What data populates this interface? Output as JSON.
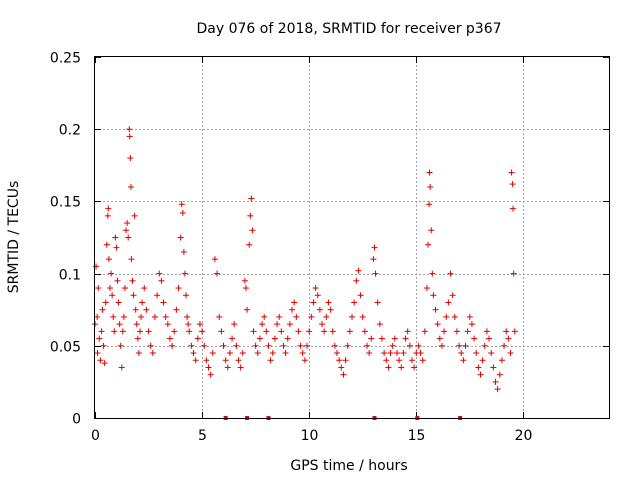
{
  "chart_data": {
    "type": "scatter",
    "title": "Day 076 of 2018, SRMTID for receiver p367",
    "xlabel": "GPS time / hours",
    "ylabel": "SRMTID / TECUs",
    "xlim": [
      0,
      24
    ],
    "ylim": [
      0,
      0.25
    ],
    "xticks": [
      0,
      5,
      10,
      15,
      20
    ],
    "xtick_labels": [
      "0",
      "5",
      "10",
      "15",
      "20"
    ],
    "yticks": [
      0,
      0.05,
      0.1,
      0.15,
      0.2,
      0.25
    ],
    "ytick_labels": [
      "0",
      "0.05",
      "0.1",
      "0.15",
      "0.2",
      "0.25"
    ],
    "grid": true,
    "marker": "+",
    "color": "#e00000",
    "series": [
      {
        "name": "SRMTID",
        "points": [
          [
            0.0,
            0.065
          ],
          [
            0.05,
            0.105
          ],
          [
            0.1,
            0.07
          ],
          [
            0.12,
            0.045
          ],
          [
            0.15,
            0.09
          ],
          [
            0.2,
            0.055
          ],
          [
            0.25,
            0.04
          ],
          [
            0.3,
            0.06
          ],
          [
            0.35,
            0.075
          ],
          [
            0.4,
            0.05
          ],
          [
            0.45,
            0.038
          ],
          [
            0.5,
            0.08
          ],
          [
            0.55,
            0.12
          ],
          [
            0.6,
            0.14
          ],
          [
            0.62,
            0.145
          ],
          [
            0.65,
            0.11
          ],
          [
            0.7,
            0.09
          ],
          [
            0.75,
            0.1
          ],
          [
            0.8,
            0.085
          ],
          [
            0.85,
            0.07
          ],
          [
            0.9,
            0.06
          ],
          [
            0.95,
            0.125
          ],
          [
            1.0,
            0.118
          ],
          [
            1.05,
            0.095
          ],
          [
            1.1,
            0.08
          ],
          [
            1.15,
            0.065
          ],
          [
            1.2,
            0.05
          ],
          [
            1.25,
            0.035
          ],
          [
            1.3,
            0.06
          ],
          [
            1.35,
            0.07
          ],
          [
            1.4,
            0.09
          ],
          [
            1.45,
            0.13
          ],
          [
            1.5,
            0.135
          ],
          [
            1.55,
            0.125
          ],
          [
            1.6,
            0.2
          ],
          [
            1.62,
            0.195
          ],
          [
            1.65,
            0.18
          ],
          [
            1.68,
            0.16
          ],
          [
            1.7,
            0.11
          ],
          [
            1.75,
            0.095
          ],
          [
            1.8,
            0.085
          ],
          [
            1.85,
            0.14
          ],
          [
            1.9,
            0.075
          ],
          [
            1.95,
            0.065
          ],
          [
            2.0,
            0.055
          ],
          [
            2.05,
            0.045
          ],
          [
            2.1,
            0.06
          ],
          [
            2.15,
            0.07
          ],
          [
            2.2,
            0.08
          ],
          [
            2.3,
            0.09
          ],
          [
            2.4,
            0.075
          ],
          [
            2.5,
            0.06
          ],
          [
            2.6,
            0.05
          ],
          [
            2.7,
            0.045
          ],
          [
            2.8,
            0.07
          ],
          [
            2.9,
            0.085
          ],
          [
            3.0,
            0.1
          ],
          [
            3.1,
            0.095
          ],
          [
            3.2,
            0.08
          ],
          [
            3.3,
            0.07
          ],
          [
            3.4,
            0.065
          ],
          [
            3.5,
            0.055
          ],
          [
            3.6,
            0.05
          ],
          [
            3.7,
            0.06
          ],
          [
            3.8,
            0.075
          ],
          [
            3.9,
            0.09
          ],
          [
            4.0,
            0.125
          ],
          [
            4.05,
            0.148
          ],
          [
            4.1,
            0.142
          ],
          [
            4.15,
            0.115
          ],
          [
            4.2,
            0.1
          ],
          [
            4.25,
            0.085
          ],
          [
            4.3,
            0.07
          ],
          [
            4.35,
            0.065
          ],
          [
            4.4,
            0.06
          ],
          [
            4.5,
            0.05
          ],
          [
            4.6,
            0.045
          ],
          [
            4.7,
            0.04
          ],
          [
            4.8,
            0.055
          ],
          [
            4.9,
            0.065
          ],
          [
            5.0,
            0.06
          ],
          [
            5.1,
            0.05
          ],
          [
            5.2,
            0.04
          ],
          [
            5.3,
            0.035
          ],
          [
            5.4,
            0.03
          ],
          [
            5.5,
            0.045
          ],
          [
            5.6,
            0.11
          ],
          [
            5.7,
            0.1
          ],
          [
            5.8,
            0.07
          ],
          [
            5.9,
            0.06
          ],
          [
            6.0,
            0.05
          ],
          [
            6.1,
            0.04
          ],
          [
            6.2,
            0.035
          ],
          [
            6.3,
            0.045
          ],
          [
            6.4,
            0.055
          ],
          [
            6.5,
            0.065
          ],
          [
            6.6,
            0.05
          ],
          [
            6.7,
            0.04
          ],
          [
            6.8,
            0.035
          ],
          [
            6.9,
            0.045
          ],
          [
            7.0,
            0.095
          ],
          [
            7.05,
            0.09
          ],
          [
            7.1,
            0.075
          ],
          [
            7.2,
            0.12
          ],
          [
            7.25,
            0.14
          ],
          [
            7.3,
            0.152
          ],
          [
            7.35,
            0.13
          ],
          [
            7.4,
            0.06
          ],
          [
            7.5,
            0.05
          ],
          [
            7.6,
            0.045
          ],
          [
            7.7,
            0.055
          ],
          [
            7.8,
            0.065
          ],
          [
            7.9,
            0.07
          ],
          [
            8.0,
            0.06
          ],
          [
            8.1,
            0.05
          ],
          [
            8.2,
            0.04
          ],
          [
            8.3,
            0.045
          ],
          [
            8.4,
            0.055
          ],
          [
            8.5,
            0.065
          ],
          [
            8.6,
            0.07
          ],
          [
            8.7,
            0.06
          ],
          [
            8.8,
            0.05
          ],
          [
            8.9,
            0.045
          ],
          [
            9.0,
            0.055
          ],
          [
            9.1,
            0.065
          ],
          [
            9.2,
            0.075
          ],
          [
            9.3,
            0.08
          ],
          [
            9.4,
            0.07
          ],
          [
            9.5,
            0.06
          ],
          [
            9.6,
            0.05
          ],
          [
            9.7,
            0.045
          ],
          [
            9.8,
            0.04
          ],
          [
            9.9,
            0.05
          ],
          [
            10.0,
            0.06
          ],
          [
            10.1,
            0.07
          ],
          [
            10.2,
            0.08
          ],
          [
            10.3,
            0.09
          ],
          [
            10.4,
            0.085
          ],
          [
            10.5,
            0.075
          ],
          [
            10.6,
            0.065
          ],
          [
            10.7,
            0.06
          ],
          [
            10.8,
            0.07
          ],
          [
            10.9,
            0.08
          ],
          [
            11.0,
            0.075
          ],
          [
            11.1,
            0.06
          ],
          [
            11.2,
            0.05
          ],
          [
            11.3,
            0.045
          ],
          [
            11.4,
            0.04
          ],
          [
            11.5,
            0.035
          ],
          [
            11.6,
            0.03
          ],
          [
            11.7,
            0.04
          ],
          [
            11.8,
            0.05
          ],
          [
            11.9,
            0.06
          ],
          [
            12.0,
            0.07
          ],
          [
            12.1,
            0.08
          ],
          [
            12.2,
            0.095
          ],
          [
            12.3,
            0.102
          ],
          [
            12.4,
            0.085
          ],
          [
            12.5,
            0.07
          ],
          [
            12.6,
            0.06
          ],
          [
            12.7,
            0.05
          ],
          [
            12.8,
            0.045
          ],
          [
            12.9,
            0.055
          ],
          [
            13.0,
            0.11
          ],
          [
            13.05,
            0.118
          ],
          [
            13.1,
            0.1
          ],
          [
            13.2,
            0.08
          ],
          [
            13.3,
            0.065
          ],
          [
            13.4,
            0.055
          ],
          [
            13.5,
            0.045
          ],
          [
            13.6,
            0.04
          ],
          [
            13.7,
            0.035
          ],
          [
            13.8,
            0.045
          ],
          [
            13.9,
            0.05
          ],
          [
            14.0,
            0.055
          ],
          [
            14.1,
            0.045
          ],
          [
            14.2,
            0.04
          ],
          [
            14.3,
            0.035
          ],
          [
            14.4,
            0.045
          ],
          [
            14.5,
            0.055
          ],
          [
            14.6,
            0.06
          ],
          [
            14.7,
            0.05
          ],
          [
            14.8,
            0.04
          ],
          [
            14.9,
            0.035
          ],
          [
            15.0,
            0.045
          ],
          [
            15.1,
            0.05
          ],
          [
            15.2,
            0.045
          ],
          [
            15.3,
            0.04
          ],
          [
            15.4,
            0.06
          ],
          [
            15.5,
            0.09
          ],
          [
            15.55,
            0.12
          ],
          [
            15.6,
            0.148
          ],
          [
            15.62,
            0.17
          ],
          [
            15.65,
            0.16
          ],
          [
            15.7,
            0.13
          ],
          [
            15.75,
            0.1
          ],
          [
            15.8,
            0.085
          ],
          [
            15.9,
            0.075
          ],
          [
            16.0,
            0.065
          ],
          [
            16.1,
            0.055
          ],
          [
            16.2,
            0.05
          ],
          [
            16.3,
            0.06
          ],
          [
            16.4,
            0.07
          ],
          [
            16.5,
            0.08
          ],
          [
            16.6,
            0.1
          ],
          [
            16.7,
            0.085
          ],
          [
            16.8,
            0.07
          ],
          [
            16.9,
            0.06
          ],
          [
            17.0,
            0.05
          ],
          [
            17.1,
            0.045
          ],
          [
            17.2,
            0.04
          ],
          [
            17.3,
            0.05
          ],
          [
            17.4,
            0.06
          ],
          [
            17.5,
            0.07
          ],
          [
            17.6,
            0.065
          ],
          [
            17.7,
            0.055
          ],
          [
            17.8,
            0.045
          ],
          [
            17.9,
            0.035
          ],
          [
            18.0,
            0.03
          ],
          [
            18.1,
            0.04
          ],
          [
            18.2,
            0.05
          ],
          [
            18.3,
            0.06
          ],
          [
            18.4,
            0.055
          ],
          [
            18.5,
            0.045
          ],
          [
            18.6,
            0.035
          ],
          [
            18.7,
            0.025
          ],
          [
            18.8,
            0.02
          ],
          [
            18.9,
            0.03
          ],
          [
            19.0,
            0.04
          ],
          [
            19.1,
            0.05
          ],
          [
            19.2,
            0.06
          ],
          [
            19.3,
            0.055
          ],
          [
            19.4,
            0.045
          ],
          [
            19.45,
            0.17
          ],
          [
            19.5,
            0.162
          ],
          [
            19.52,
            0.145
          ],
          [
            19.55,
            0.1
          ],
          [
            19.6,
            0.06
          ]
        ]
      }
    ],
    "data_gaps_marked_at_zero": [
      6.1,
      7.1,
      8.1,
      13.05,
      15.05,
      17.05
    ]
  }
}
